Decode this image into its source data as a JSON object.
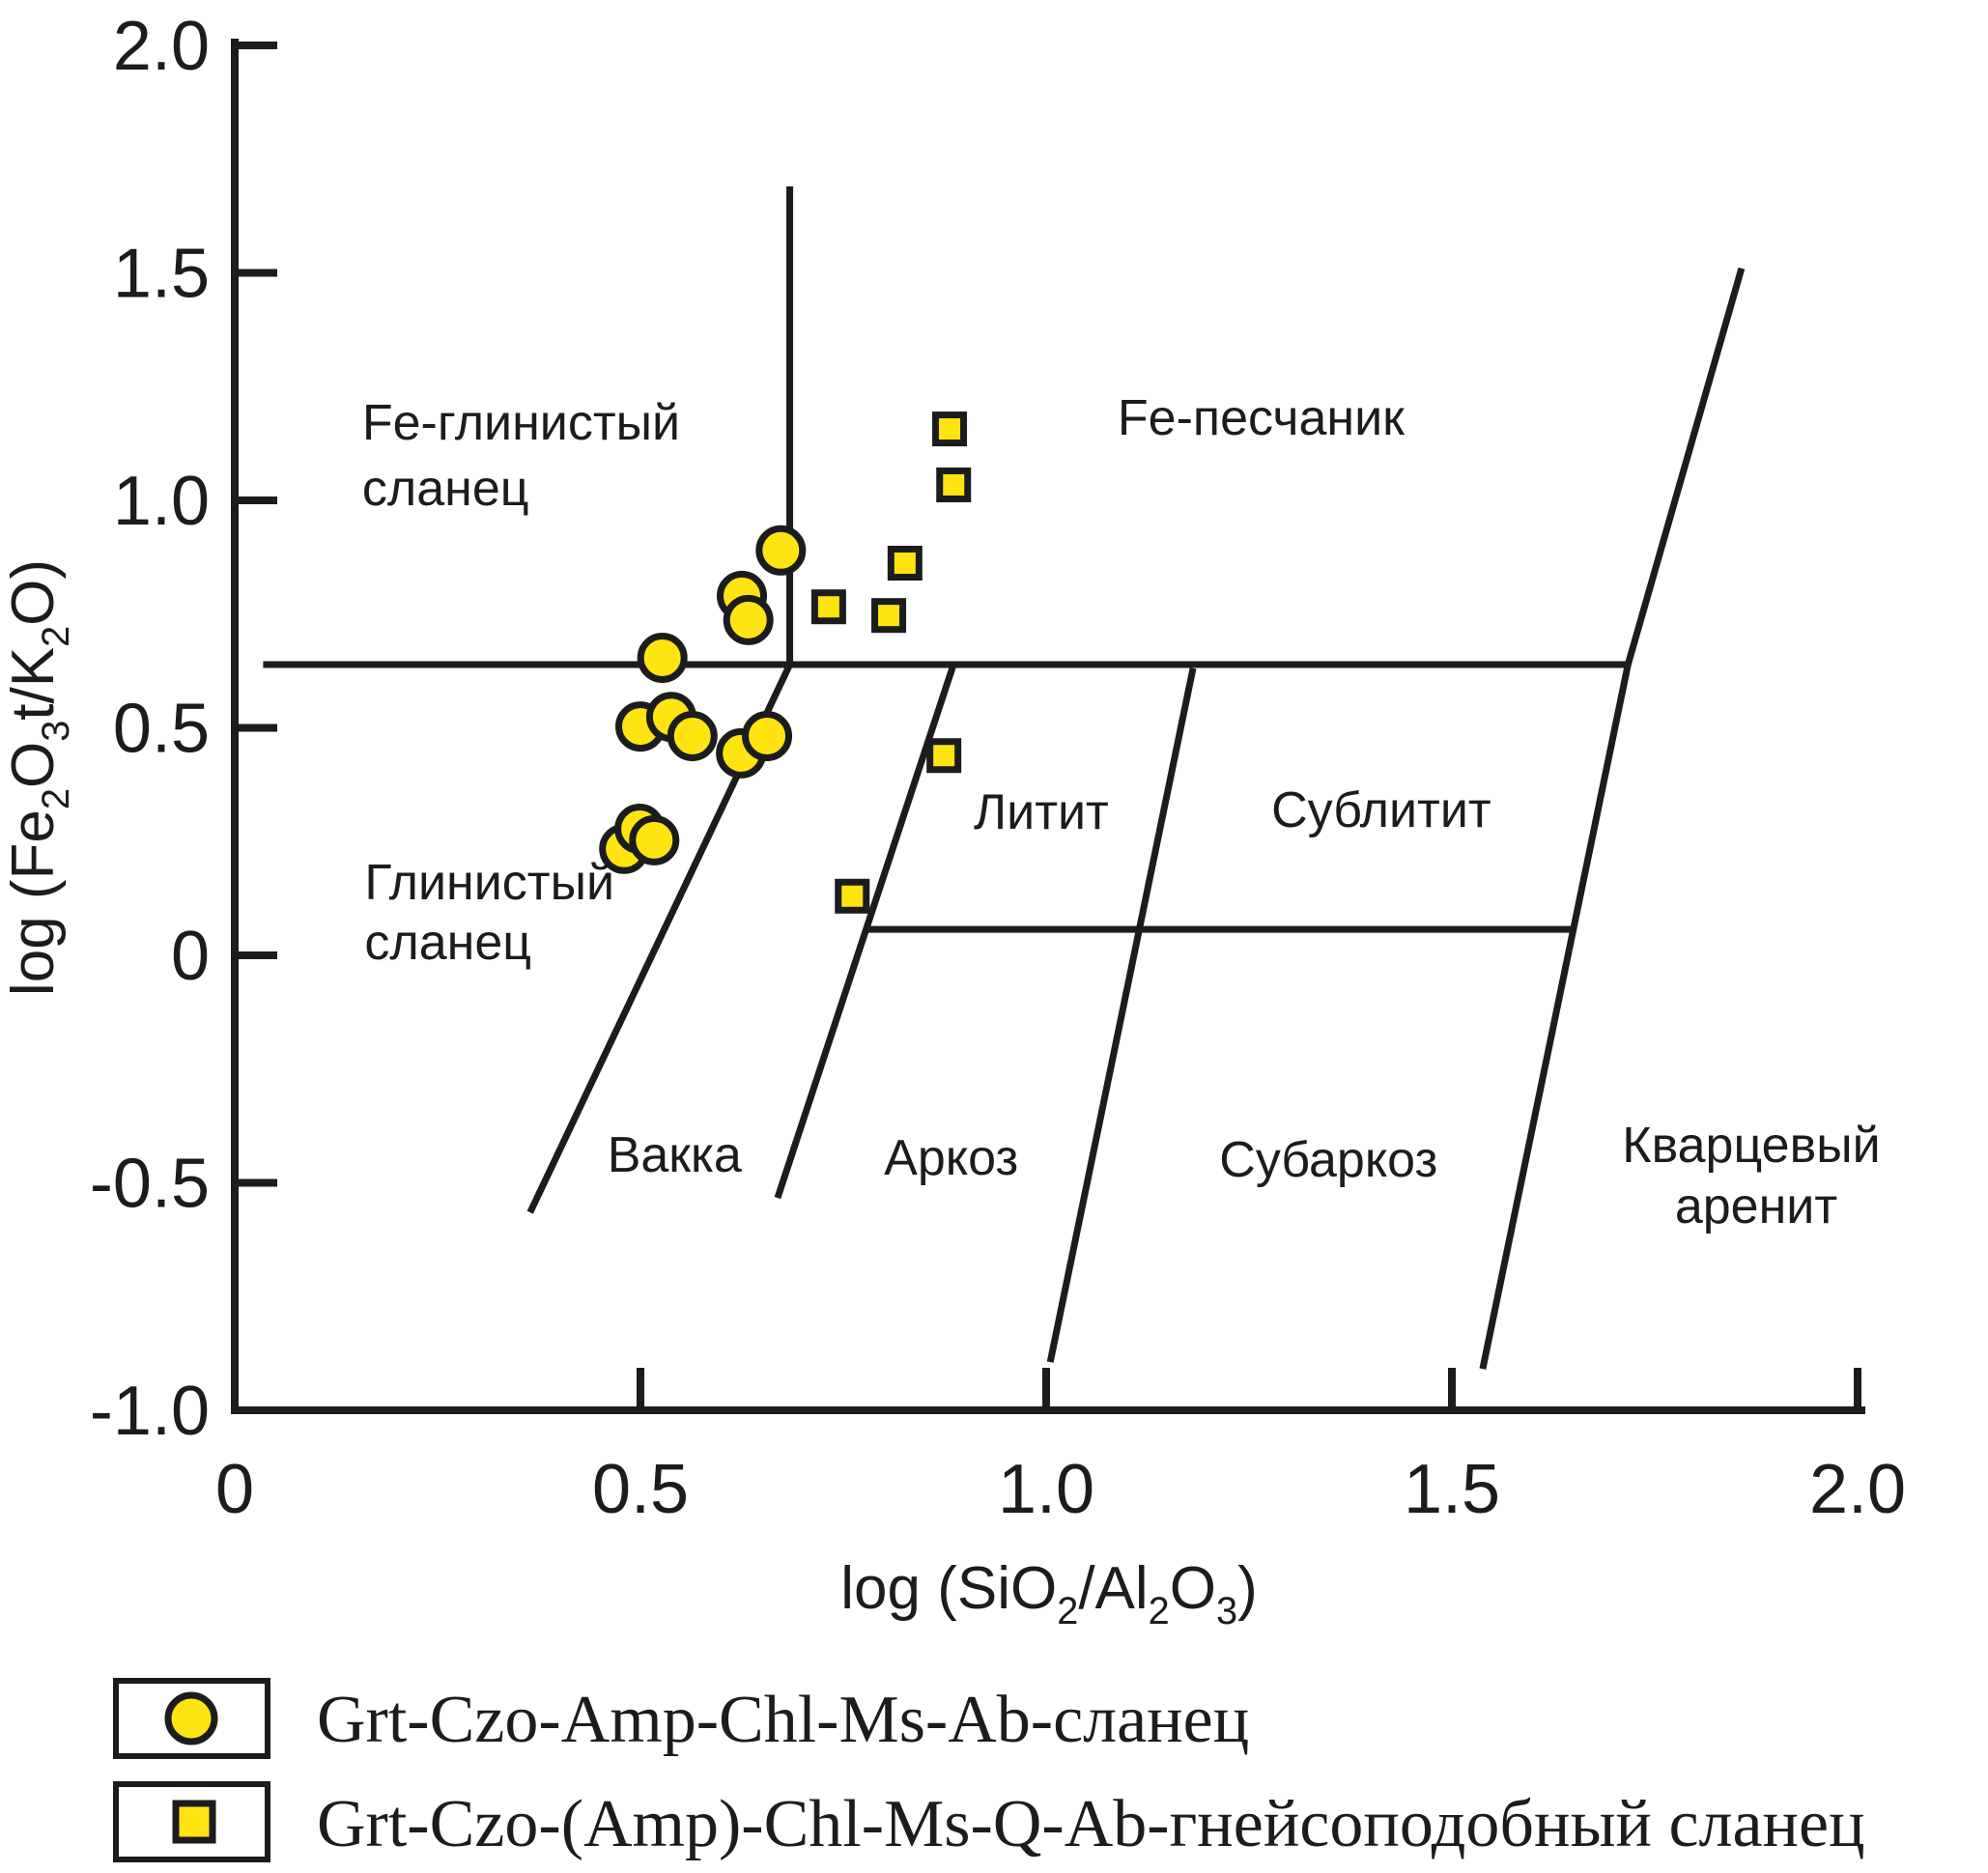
{
  "figure": {
    "ink": "#1c1c1c",
    "marker_fill": "#ffe412",
    "background": "#ffffff"
  },
  "chart_data": {
    "type": "scatter",
    "title": "",
    "xlabel": "log (SiO₂/Al₂O₃)",
    "ylabel": "log (Fe₂O₃t/K₂O)",
    "xlim": [
      0,
      2.0
    ],
    "ylim": [
      -1.0,
      2.0
    ],
    "grid": false,
    "legend_position": "bottom-left",
    "x_ticks": [
      {
        "value": 0,
        "label": "0",
        "tick": false
      },
      {
        "value": 0.5,
        "label": "0.5",
        "tick": true
      },
      {
        "value": 1.0,
        "label": "1.0",
        "tick": true
      },
      {
        "value": 1.5,
        "label": "1.5",
        "tick": true
      },
      {
        "value": 2.0,
        "label": "2.0",
        "tick": true
      }
    ],
    "y_ticks": [
      {
        "value": 2.0,
        "label": "2.0",
        "tick": true
      },
      {
        "value": 1.5,
        "label": "1.5",
        "tick": true
      },
      {
        "value": 1.0,
        "label": "1.0",
        "tick": true
      },
      {
        "value": 0.5,
        "label": "0.5",
        "tick": true
      },
      {
        "value": 0,
        "label": "0",
        "tick": true
      },
      {
        "value": -0.5,
        "label": "-0.5",
        "tick": true
      },
      {
        "value": -1.0,
        "label": "-1.0",
        "tick": false
      }
    ],
    "series": [
      {
        "name": "Grt-Czo-Amp-Chl-Ms-Ab-сланец",
        "marker": "circle",
        "points": [
          [
            0.673,
            0.89
          ],
          [
            0.625,
            0.79
          ],
          [
            0.633,
            0.737
          ],
          [
            0.527,
            0.654
          ],
          [
            0.5,
            0.503
          ],
          [
            0.538,
            0.524
          ],
          [
            0.564,
            0.482
          ],
          [
            0.624,
            0.444
          ],
          [
            0.656,
            0.482
          ],
          [
            0.48,
            0.234
          ],
          [
            0.499,
            0.278
          ],
          [
            0.517,
            0.253
          ]
        ]
      },
      {
        "name": "Grt-Czo-(Amp)-Chl-Ms-Q-Ab-гнейсоподобный сланец",
        "marker": "square",
        "points": [
          [
            0.881,
            1.157
          ],
          [
            0.886,
            1.034
          ],
          [
            0.826,
            0.862
          ],
          [
            0.732,
            0.766
          ],
          [
            0.806,
            0.747
          ],
          [
            0.874,
            0.439
          ],
          [
            0.761,
            0.13
          ]
        ]
      }
    ],
    "boundaries": [
      {
        "name": "fe-divider-horizontal",
        "points": [
          [
            0.035,
            0.639
          ],
          [
            1.717,
            0.639
          ]
        ]
      },
      {
        "name": "fe-shale-fe-sandstone",
        "points": [
          [
            0.684,
            0.639
          ],
          [
            0.684,
            1.69
          ]
        ]
      },
      {
        "name": "shale-wacke",
        "points": [
          [
            0.683,
            0.635
          ],
          [
            0.364,
            -0.565
          ]
        ]
      },
      {
        "name": "wacke-litharenite",
        "points": [
          [
            0.885,
            0.635
          ],
          [
            0.669,
            -0.533
          ]
        ]
      },
      {
        "name": "litharenite-sublitharenite",
        "points": [
          [
            1.181,
            0.631
          ],
          [
            1.005,
            -0.894
          ]
        ]
      },
      {
        "name": "sublitharenite-quartz",
        "points": [
          [
            1.717,
            0.639
          ],
          [
            1.538,
            -0.909
          ]
        ]
      },
      {
        "name": "fe-sandstone-right",
        "points": [
          [
            1.717,
            0.639
          ],
          [
            1.857,
            1.51
          ]
        ]
      },
      {
        "name": "litharenite-arkose",
        "points": [
          [
            0.779,
            0.057
          ],
          [
            1.648,
            0.057
          ]
        ]
      }
    ],
    "field_labels": [
      {
        "text": "Fe-глинистый",
        "x": 0.157,
        "y": 1.172,
        "anchor": "start"
      },
      {
        "text": "сланец",
        "x": 0.157,
        "y": 1.028,
        "anchor": "start"
      },
      {
        "text": "Fe-песчаник",
        "x": 1.088,
        "y": 1.183,
        "anchor": "start"
      },
      {
        "text": "Глинистый",
        "x": 0.16,
        "y": 0.161,
        "anchor": "start"
      },
      {
        "text": "сланец",
        "x": 0.16,
        "y": 0.03,
        "anchor": "start"
      },
      {
        "text": "Вакка",
        "x": 0.542,
        "y": -0.437,
        "anchor": "middle"
      },
      {
        "text": "Аркоз",
        "x": 0.883,
        "y": -0.444,
        "anchor": "middle"
      },
      {
        "text": "Литит",
        "x": 0.994,
        "y": 0.316,
        "anchor": "middle"
      },
      {
        "text": "Сублитит",
        "x": 1.413,
        "y": 0.321,
        "anchor": "middle"
      },
      {
        "text": "Субаркоз",
        "x": 1.348,
        "y": -0.448,
        "anchor": "middle"
      },
      {
        "text": "Кварцевый",
        "x": 1.869,
        "y": -0.416,
        "anchor": "middle"
      },
      {
        "text": "аренит",
        "x": 1.875,
        "y": -0.55,
        "anchor": "middle"
      }
    ]
  },
  "legend": {
    "items": [
      {
        "marker": "circle",
        "label": "Grt-Czo-Amp-Chl-Ms-Ab-сланец"
      },
      {
        "marker": "square",
        "label": "Grt-Czo-(Amp)-Chl-Ms-Q-Ab-гнейсоподобный сланец"
      }
    ]
  }
}
